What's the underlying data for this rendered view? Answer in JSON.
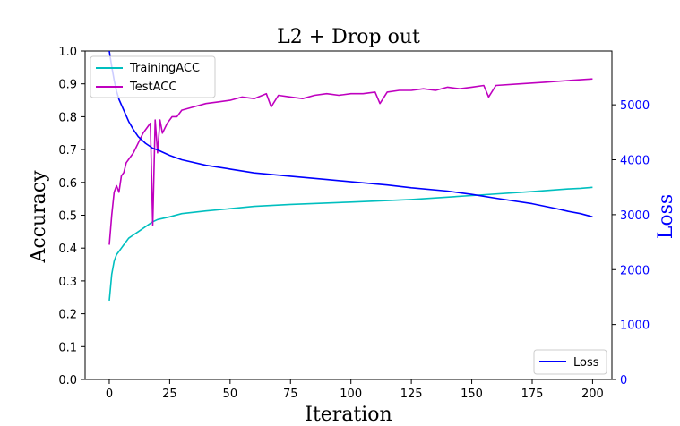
{
  "chart_data": {
    "type": "line",
    "title": "L2 + Drop out",
    "xlabel": "Iteration",
    "ylabel": "Accuracy",
    "ylabel_right": "Loss",
    "xlim": [
      -10,
      208
    ],
    "ylim": [
      0,
      1.0
    ],
    "ylim_right": [
      0,
      5980
    ],
    "x_ticks": [
      0,
      25,
      50,
      75,
      100,
      125,
      150,
      175,
      200
    ],
    "y_ticks": [
      0.0,
      0.1,
      0.2,
      0.3,
      0.4,
      0.5,
      0.6,
      0.7,
      0.8,
      0.9,
      1.0
    ],
    "y_ticks_right": [
      0,
      1000,
      2000,
      3000,
      4000,
      5000
    ],
    "grid": false,
    "legend_left_placement": "top-left",
    "legend_right_placement": "bottom-right",
    "series": [
      {
        "name": "TrainingACC",
        "axis": "left",
        "color": "#00bfbf",
        "x": [
          0,
          1,
          2,
          3,
          4,
          5,
          6,
          8,
          10,
          12,
          15,
          18,
          20,
          25,
          30,
          40,
          50,
          60,
          75,
          100,
          125,
          150,
          175,
          190,
          195,
          200
        ],
        "y": [
          0.24,
          0.32,
          0.36,
          0.38,
          0.39,
          0.4,
          0.41,
          0.43,
          0.44,
          0.45,
          0.465,
          0.48,
          0.487,
          0.495,
          0.505,
          0.513,
          0.52,
          0.527,
          0.533,
          0.54,
          0.548,
          0.56,
          0.572,
          0.58,
          0.582,
          0.585
        ]
      },
      {
        "name": "TestACC",
        "axis": "left",
        "color": "#bf00bf",
        "x": [
          0,
          1,
          2,
          3,
          4,
          5,
          6,
          7,
          8,
          10,
          12,
          14,
          16,
          17,
          18,
          19,
          20,
          21,
          22,
          24,
          26,
          28,
          30,
          35,
          40,
          45,
          50,
          55,
          60,
          65,
          67,
          70,
          75,
          80,
          85,
          90,
          95,
          100,
          105,
          110,
          112,
          115,
          120,
          125,
          130,
          135,
          140,
          145,
          150,
          155,
          157,
          160,
          170,
          180,
          190,
          200
        ],
        "y": [
          0.41,
          0.5,
          0.57,
          0.59,
          0.57,
          0.62,
          0.63,
          0.66,
          0.67,
          0.69,
          0.72,
          0.75,
          0.77,
          0.78,
          0.47,
          0.79,
          0.69,
          0.79,
          0.75,
          0.78,
          0.8,
          0.8,
          0.82,
          0.83,
          0.84,
          0.845,
          0.85,
          0.86,
          0.855,
          0.87,
          0.83,
          0.865,
          0.86,
          0.855,
          0.865,
          0.87,
          0.865,
          0.87,
          0.87,
          0.875,
          0.84,
          0.875,
          0.88,
          0.88,
          0.885,
          0.88,
          0.89,
          0.885,
          0.89,
          0.895,
          0.86,
          0.895,
          0.9,
          0.905,
          0.91,
          0.915
        ]
      },
      {
        "name": "Loss",
        "axis": "right",
        "color": "#0000ff",
        "x": [
          0,
          1,
          2,
          3,
          4,
          6,
          8,
          10,
          12,
          15,
          18,
          20,
          25,
          30,
          40,
          50,
          60,
          75,
          90,
          100,
          115,
          125,
          140,
          150,
          160,
          175,
          185,
          190,
          195,
          200
        ],
        "y": [
          6000,
          5700,
          5450,
          5250,
          5100,
          4900,
          4700,
          4550,
          4420,
          4300,
          4210,
          4180,
          4080,
          4000,
          3900,
          3830,
          3760,
          3700,
          3640,
          3600,
          3540,
          3490,
          3430,
          3370,
          3300,
          3200,
          3110,
          3060,
          3020,
          2960
        ]
      }
    ]
  }
}
